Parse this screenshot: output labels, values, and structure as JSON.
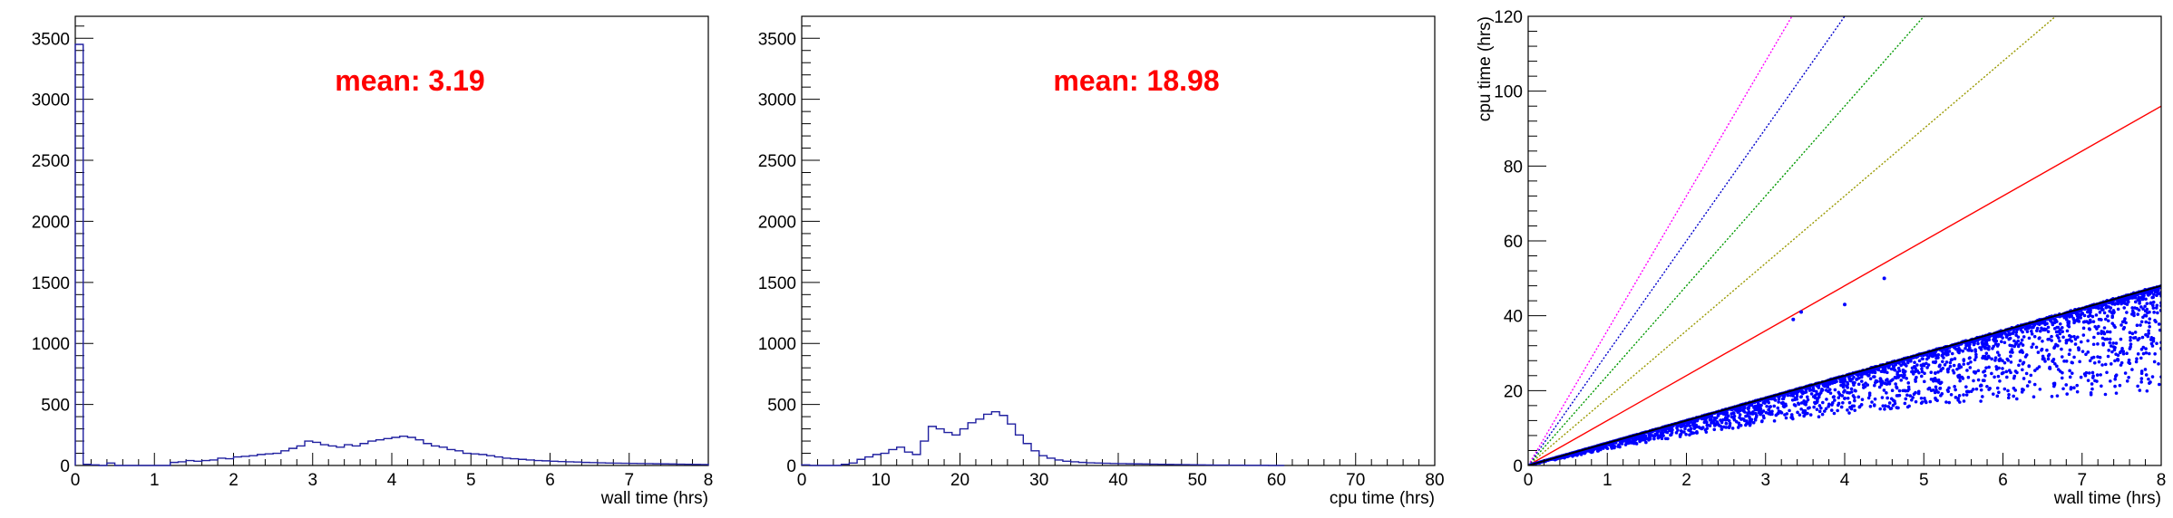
{
  "chart_data": [
    {
      "type": "histogram",
      "xlabel": "wall time (hrs)",
      "ylabel": "",
      "xlim": [
        0,
        8
      ],
      "ylim": [
        0,
        3680
      ],
      "x_ticks": [
        0,
        1,
        2,
        3,
        4,
        5,
        6,
        7,
        8
      ],
      "y_ticks": [
        0,
        500,
        1000,
        1500,
        2000,
        2500,
        3000,
        3500
      ],
      "annotation": "mean: 3.19",
      "color": "#2020a0",
      "bin_width": 0.1,
      "bins_x": [
        0.0,
        0.1,
        0.2,
        0.3,
        0.4,
        0.5,
        0.6,
        0.7,
        0.8,
        0.9,
        1.0,
        1.1,
        1.2,
        1.3,
        1.4,
        1.5,
        1.6,
        1.7,
        1.8,
        1.9,
        2.0,
        2.1,
        2.2,
        2.3,
        2.4,
        2.5,
        2.6,
        2.7,
        2.8,
        2.9,
        3.0,
        3.1,
        3.2,
        3.3,
        3.4,
        3.5,
        3.6,
        3.7,
        3.8,
        3.9,
        4.0,
        4.1,
        4.2,
        4.3,
        4.4,
        4.5,
        4.6,
        4.7,
        4.8,
        4.9,
        5.0,
        5.1,
        5.2,
        5.3,
        5.4,
        5.5,
        5.6,
        5.7,
        5.8,
        5.9,
        6.0,
        6.1,
        6.2,
        6.3,
        6.4,
        6.5,
        6.6,
        6.7,
        6.8,
        6.9,
        7.0,
        7.1,
        7.2,
        7.3,
        7.4,
        7.5,
        7.6,
        7.7,
        7.8,
        7.9
      ],
      "counts": [
        3450,
        10,
        5,
        0,
        20,
        0,
        0,
        0,
        0,
        0,
        0,
        0,
        25,
        30,
        40,
        35,
        40,
        45,
        60,
        55,
        70,
        75,
        80,
        90,
        95,
        100,
        120,
        140,
        160,
        200,
        190,
        170,
        160,
        150,
        170,
        160,
        180,
        200,
        210,
        220,
        230,
        240,
        230,
        210,
        180,
        160,
        150,
        130,
        120,
        100,
        95,
        90,
        80,
        70,
        60,
        55,
        50,
        45,
        40,
        38,
        35,
        32,
        30,
        28,
        25,
        24,
        22,
        20,
        19,
        18,
        17,
        16,
        15,
        14,
        13,
        12,
        11,
        10,
        9,
        8
      ]
    },
    {
      "type": "histogram",
      "xlabel": "cpu time (hrs)",
      "ylabel": "",
      "xlim": [
        0,
        80
      ],
      "ylim": [
        0,
        3680
      ],
      "x_ticks": [
        0,
        10,
        20,
        30,
        40,
        50,
        60,
        70,
        80
      ],
      "y_ticks": [
        0,
        500,
        1000,
        1500,
        2000,
        2500,
        3000,
        3500
      ],
      "annotation": "mean: 18.98",
      "color": "#2020a0",
      "bin_width": 1,
      "bins_x": [
        0,
        1,
        2,
        3,
        4,
        5,
        6,
        7,
        8,
        9,
        10,
        11,
        12,
        13,
        14,
        15,
        16,
        17,
        18,
        19,
        20,
        21,
        22,
        23,
        24,
        25,
        26,
        27,
        28,
        29,
        30,
        31,
        32,
        33,
        34,
        35,
        36,
        37,
        38,
        39,
        40,
        41,
        42,
        43,
        44,
        45,
        46,
        47,
        48,
        49,
        50,
        51,
        52,
        53,
        54,
        55,
        56,
        57,
        58,
        59,
        60
      ],
      "counts": [
        5,
        0,
        0,
        0,
        0,
        10,
        20,
        50,
        70,
        90,
        100,
        130,
        150,
        110,
        90,
        200,
        320,
        300,
        270,
        250,
        300,
        350,
        380,
        420,
        440,
        410,
        340,
        250,
        180,
        120,
        80,
        60,
        45,
        35,
        30,
        25,
        22,
        20,
        18,
        16,
        15,
        14,
        13,
        12,
        11,
        10,
        9,
        8,
        7,
        6,
        5,
        4,
        3,
        3,
        2,
        2,
        1,
        1,
        1,
        0,
        0
      ]
    },
    {
      "type": "scatter",
      "xlabel": "wall time (hrs)",
      "ylabel": "cpu time (hrs)",
      "xlim": [
        0,
        8
      ],
      "ylim": [
        0,
        120
      ],
      "x_ticks": [
        0,
        1,
        2,
        3,
        4,
        5,
        6,
        7,
        8
      ],
      "y_ticks": [
        0,
        20,
        40,
        60,
        80,
        100,
        120
      ],
      "point_color": "#0000ff",
      "upper_edge_color": "#000000",
      "upper_edge_slope": 6,
      "reference_lines": [
        {
          "slope": 12,
          "color": "#ff0000"
        },
        {
          "slope": 18,
          "color": "#999900"
        },
        {
          "slope": 24,
          "color": "#009900"
        },
        {
          "slope": 30,
          "color": "#0000cc"
        },
        {
          "slope": 36,
          "color": "#ff00ff"
        }
      ],
      "outlier_points": [
        [
          3.35,
          39
        ],
        [
          3.45,
          41
        ],
        [
          4.0,
          43
        ],
        [
          4.5,
          50
        ]
      ]
    }
  ]
}
